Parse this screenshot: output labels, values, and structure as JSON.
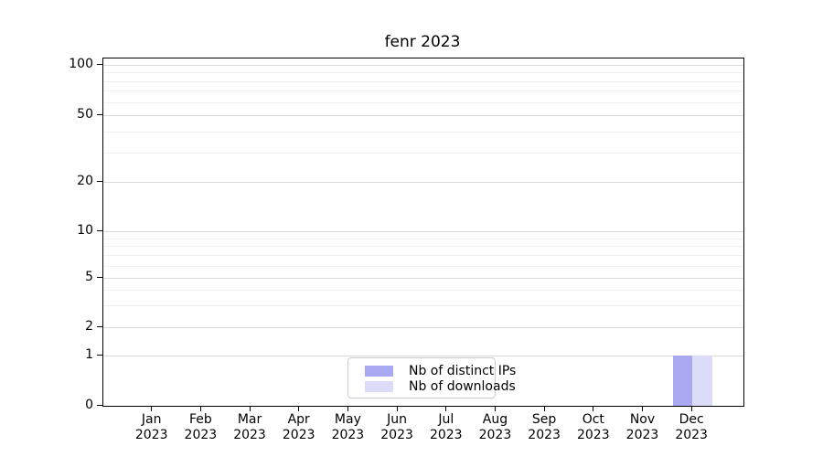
{
  "chart_data": {
    "type": "bar",
    "title": "fenr 2023",
    "categories": [
      "Jan",
      "Feb",
      "Mar",
      "Apr",
      "May",
      "Jun",
      "Jul",
      "Aug",
      "Sep",
      "Oct",
      "Nov",
      "Dec"
    ],
    "category_year": "2023",
    "series": [
      {
        "name": "Nb of distinct IPs",
        "color": "#a9a9f2",
        "values": [
          0,
          0,
          0,
          0,
          0,
          0,
          0,
          0,
          0,
          0,
          0,
          1
        ]
      },
      {
        "name": "Nb of downloads",
        "color": "#dcdcf8",
        "values": [
          0,
          0,
          0,
          0,
          0,
          0,
          0,
          0,
          0,
          0,
          0,
          1
        ]
      }
    ],
    "xlabel": "",
    "ylabel": "",
    "y_ticks": [
      0,
      1,
      2,
      5,
      10,
      20,
      50,
      100
    ],
    "y_minor_gridlines": [
      3,
      4,
      6,
      7,
      8,
      9,
      30,
      40,
      60,
      70,
      80,
      90
    ],
    "ylim": [
      0,
      110
    ],
    "yscale": "symlog",
    "grid": "horizontal",
    "legend_position": "lower center"
  }
}
